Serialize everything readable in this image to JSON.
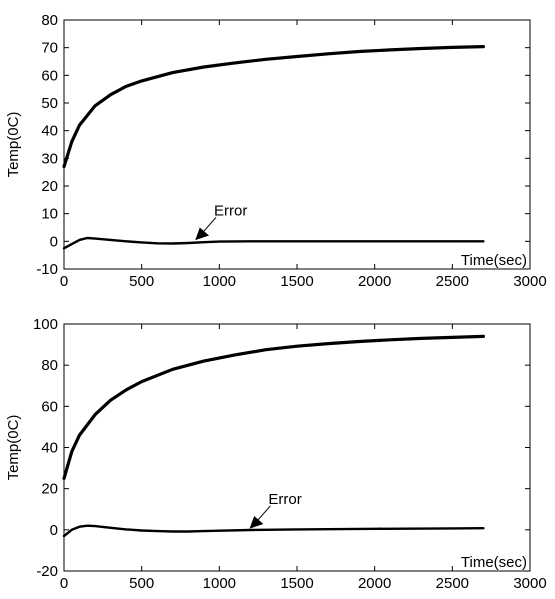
{
  "chart_data": [
    {
      "type": "line",
      "title": "",
      "xlabel": "Time(sec)",
      "ylabel": "Temp(0C)",
      "xlim": [
        0,
        3000
      ],
      "ylim": [
        -10,
        80
      ],
      "xticks": [
        0,
        500,
        1000,
        1500,
        2000,
        2500,
        3000
      ],
      "yticks": [
        -10,
        0,
        10,
        20,
        30,
        40,
        50,
        60,
        70,
        80
      ],
      "grid": false,
      "line_color": "#000000",
      "annotation": {
        "text": "Error",
        "arrow_to": [
          850,
          0
        ]
      },
      "series": [
        {
          "x": [
            0,
            50,
            100,
            200,
            300,
            400,
            500,
            700,
            900,
            1100,
            1300,
            1500,
            1700,
            1900,
            2100,
            2300,
            2500,
            2700
          ],
          "y": [
            27,
            36,
            42,
            49,
            53,
            56,
            58,
            61,
            63,
            64.5,
            65.8,
            66.8,
            67.8,
            68.6,
            69.2,
            69.7,
            70.1,
            70.4
          ]
        },
        {
          "x": [
            0,
            50,
            100,
            150,
            200,
            300,
            400,
            500,
            600,
            700,
            800,
            900,
            1000,
            1200,
            1500,
            2000,
            2500,
            2700
          ],
          "y": [
            -2.5,
            -1,
            0.5,
            1.2,
            1,
            0.5,
            0,
            -0.4,
            -0.7,
            -0.8,
            -0.6,
            -0.3,
            -0.1,
            0,
            0,
            0,
            0,
            0
          ]
        }
      ]
    },
    {
      "type": "line",
      "title": "",
      "xlabel": "Time(sec)",
      "ylabel": "Temp(0C)",
      "xlim": [
        0,
        3000
      ],
      "ylim": [
        -20,
        100
      ],
      "xticks": [
        0,
        500,
        1000,
        1500,
        2000,
        2500,
        3000
      ],
      "yticks": [
        -20,
        0,
        20,
        40,
        60,
        80,
        100
      ],
      "grid": false,
      "line_color": "#000000",
      "annotation": {
        "text": "Error",
        "arrow_to": [
          1200,
          0
        ]
      },
      "series": [
        {
          "x": [
            0,
            50,
            100,
            200,
            300,
            400,
            500,
            700,
            900,
            1100,
            1300,
            1500,
            1700,
            1900,
            2100,
            2300,
            2500,
            2700
          ],
          "y": [
            25,
            38,
            46,
            56,
            63,
            68,
            72,
            78,
            82,
            85,
            87.5,
            89.2,
            90.5,
            91.5,
            92.3,
            93,
            93.5,
            94
          ]
        },
        {
          "x": [
            0,
            50,
            100,
            150,
            200,
            300,
            400,
            500,
            600,
            700,
            800,
            900,
            1000,
            1200,
            1500,
            2000,
            2500,
            2700
          ],
          "y": [
            -3,
            0,
            1.5,
            2,
            1.8,
            1,
            0.2,
            -0.3,
            -0.6,
            -0.8,
            -0.8,
            -0.6,
            -0.4,
            -0.1,
            0.2,
            0.5,
            0.7,
            0.8
          ]
        }
      ]
    }
  ]
}
